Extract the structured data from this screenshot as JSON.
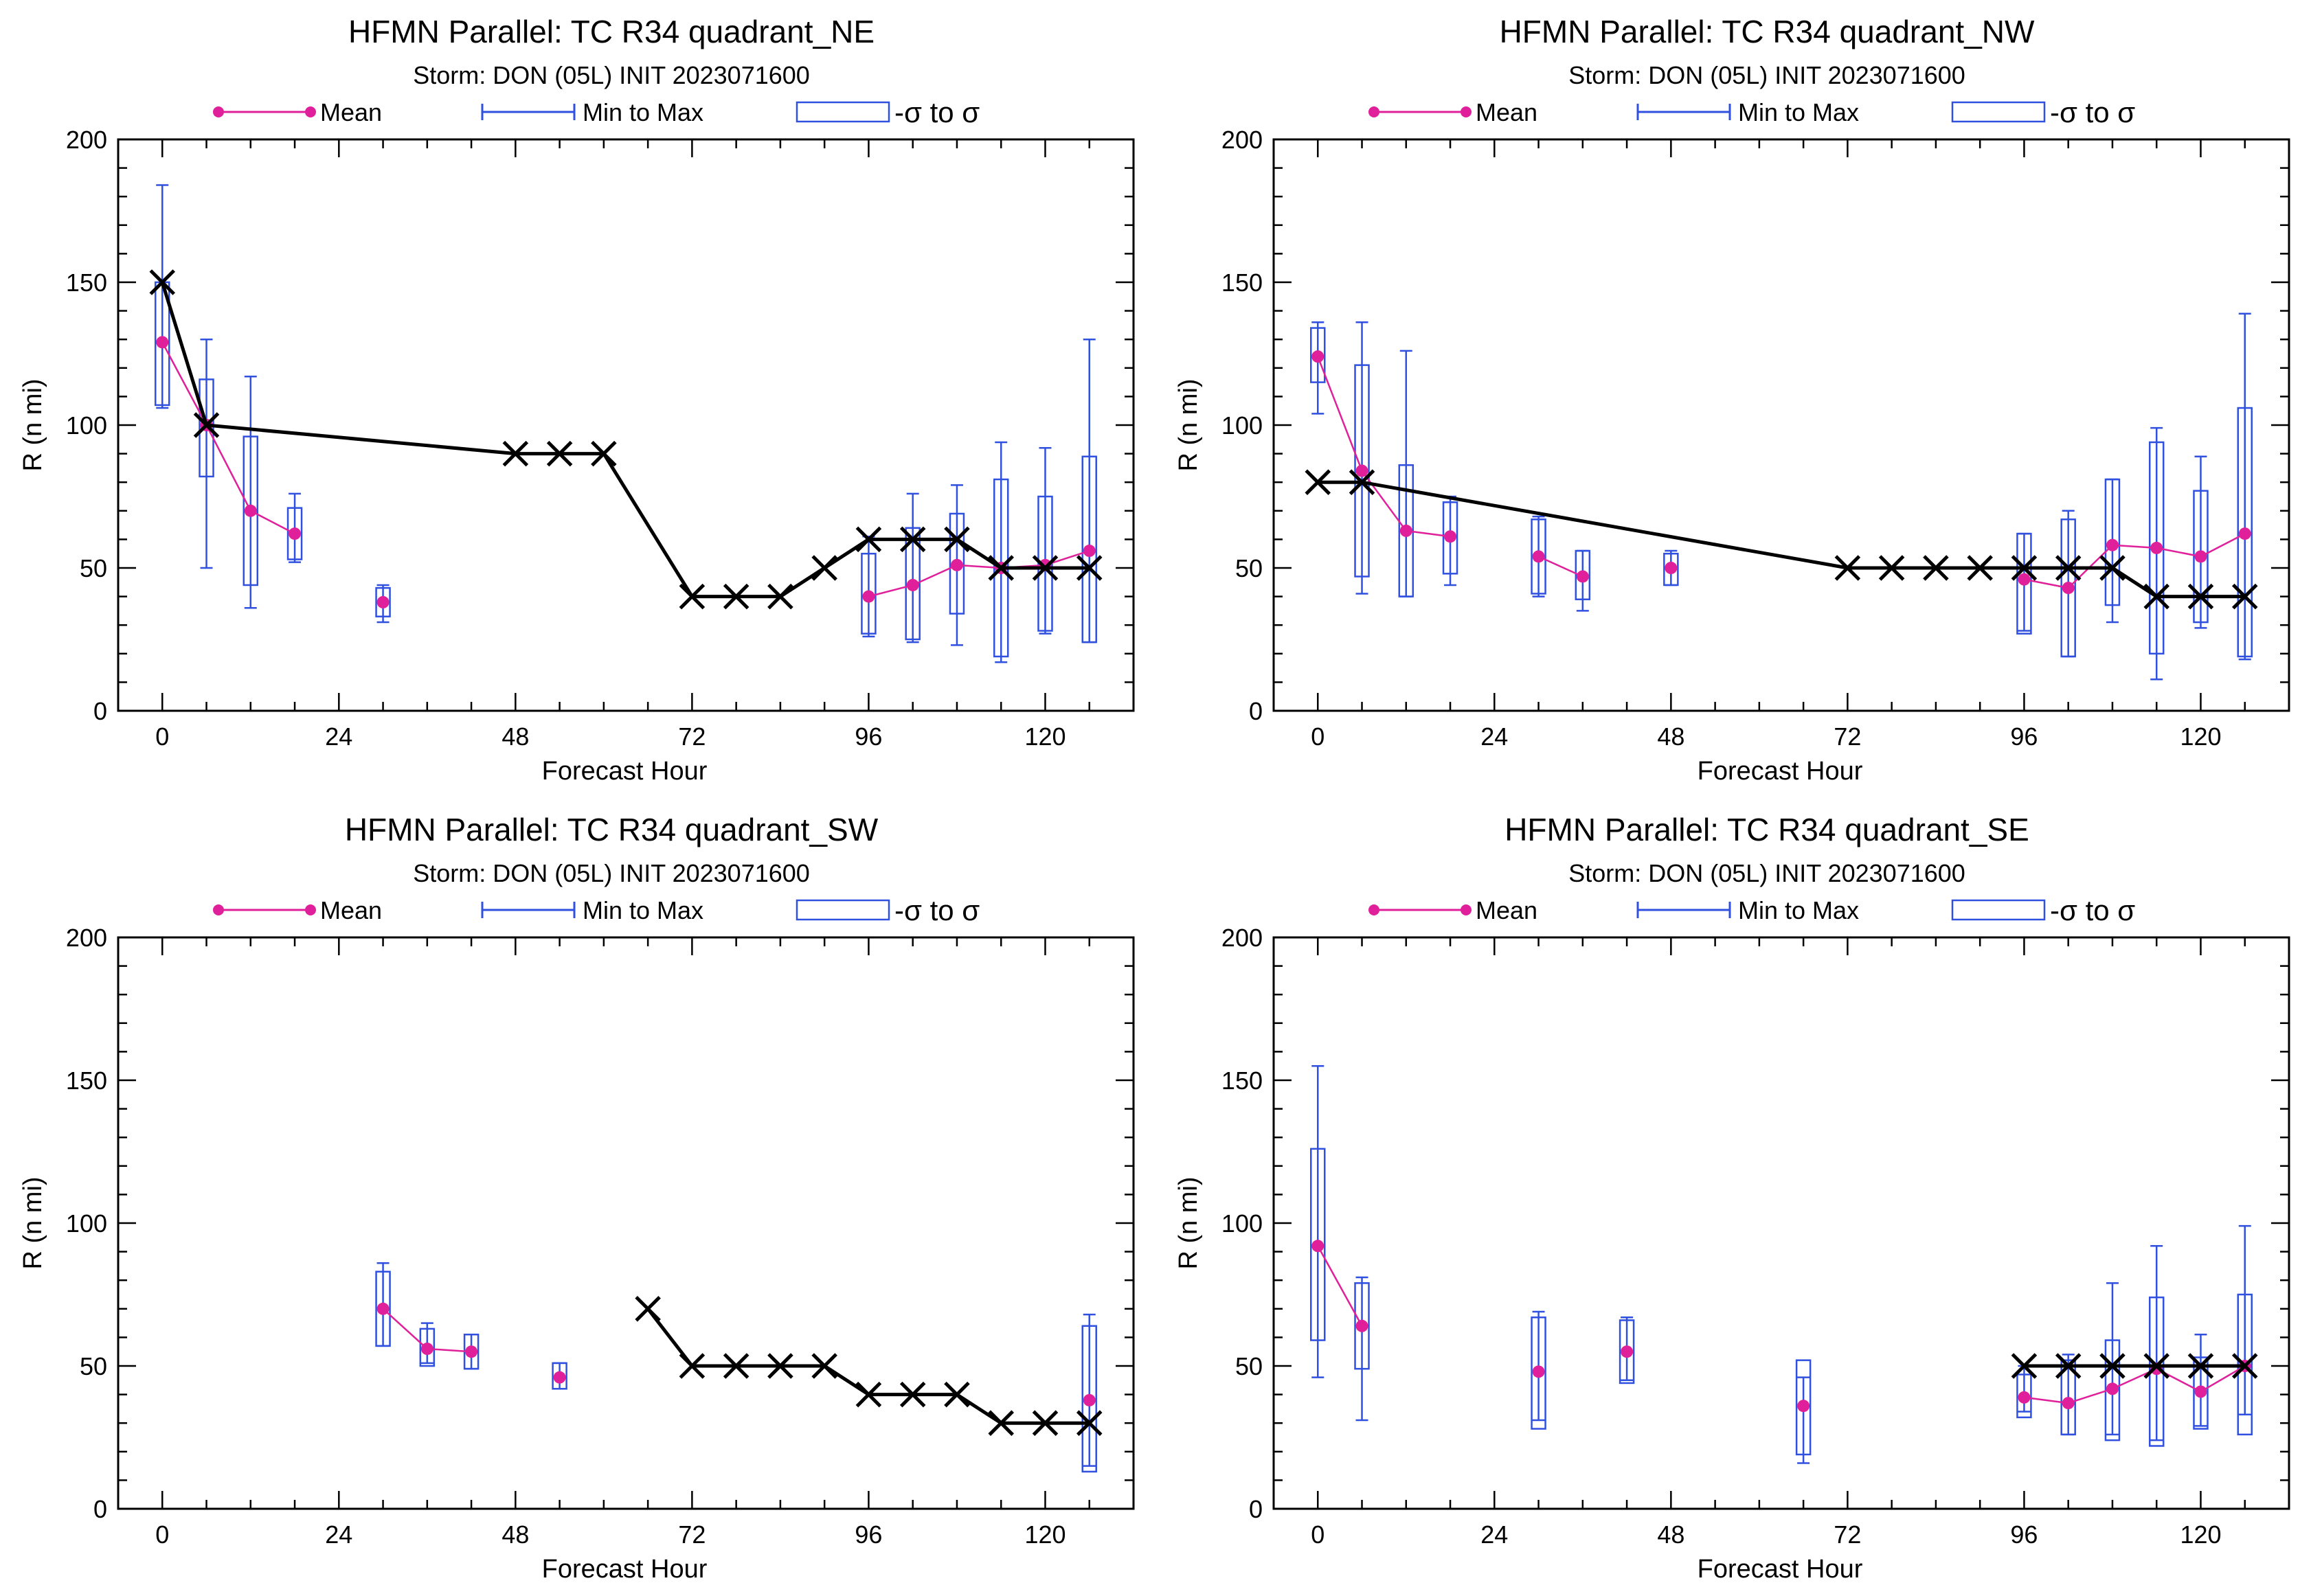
{
  "legend": {
    "mean": "Mean",
    "minmax": "Min to Max",
    "sigma": "-σ to σ"
  },
  "colors": {
    "mean": "#e0209a",
    "box": "#3050e0",
    "best_track": "#000000"
  },
  "chart_data": [
    {
      "type": "box",
      "title": "HFMN Parallel: TC  R34 quadrant_NE",
      "subtitle": "Storm: DON (05L) INIT 2023071600",
      "xlabel": "Forecast Hour",
      "ylabel": "R (n mi)",
      "xlim": [
        -6,
        132
      ],
      "ylim": [
        0,
        200
      ],
      "xticks": [
        0,
        24,
        48,
        72,
        96,
        120
      ],
      "yticks": [
        0,
        50,
        100,
        150,
        200
      ],
      "boxes": [
        {
          "x": 0,
          "min": 106,
          "max": 184,
          "lo": 107,
          "hi": 150,
          "mean": 129
        },
        {
          "x": 6,
          "min": 50,
          "max": 130,
          "lo": 82,
          "hi": 116,
          "mean": 100
        },
        {
          "x": 12,
          "min": 36,
          "max": 117,
          "lo": 44,
          "hi": 96,
          "mean": 70
        },
        {
          "x": 18,
          "min": 52,
          "max": 76,
          "lo": 53,
          "hi": 71,
          "mean": 62
        },
        {
          "x": 30,
          "min": 31,
          "max": 44,
          "lo": 33,
          "hi": 43,
          "mean": 38
        },
        {
          "x": 96,
          "min": 26,
          "max": 61,
          "lo": 27,
          "hi": 55,
          "mean": 40
        },
        {
          "x": 102,
          "min": 24,
          "max": 76,
          "lo": 25,
          "hi": 64,
          "mean": 44
        },
        {
          "x": 108,
          "min": 23,
          "max": 79,
          "lo": 34,
          "hi": 69,
          "mean": 51
        },
        {
          "x": 114,
          "min": 17,
          "max": 94,
          "lo": 19,
          "hi": 81,
          "mean": 50
        },
        {
          "x": 120,
          "min": 27,
          "max": 92,
          "lo": 28,
          "hi": 75,
          "mean": 51
        },
        {
          "x": 126,
          "min": 24,
          "max": 130,
          "lo": 24,
          "hi": 89,
          "mean": 56
        }
      ],
      "best_track": [
        [
          0,
          150
        ],
        [
          6,
          100
        ],
        [
          48,
          90
        ],
        [
          54,
          90
        ],
        [
          60,
          90
        ],
        [
          72,
          40
        ],
        [
          78,
          40
        ],
        [
          84,
          40
        ],
        [
          90,
          50
        ],
        [
          96,
          60
        ],
        [
          102,
          60
        ],
        [
          108,
          60
        ],
        [
          114,
          50
        ],
        [
          120,
          50
        ],
        [
          126,
          50
        ]
      ],
      "best_track_gaps": []
    },
    {
      "type": "box",
      "title": "HFMN Parallel: TC  R34 quadrant_NW",
      "subtitle": "Storm: DON (05L) INIT 2023071600",
      "xlabel": "Forecast Hour",
      "ylabel": "R (n mi)",
      "xlim": [
        -6,
        132
      ],
      "ylim": [
        0,
        200
      ],
      "xticks": [
        0,
        24,
        48,
        72,
        96,
        120
      ],
      "yticks": [
        0,
        50,
        100,
        150,
        200
      ],
      "boxes": [
        {
          "x": 0,
          "min": 104,
          "max": 136,
          "lo": 115,
          "hi": 134,
          "mean": 124
        },
        {
          "x": 6,
          "min": 41,
          "max": 136,
          "lo": 47,
          "hi": 121,
          "mean": 84
        },
        {
          "x": 12,
          "min": 40,
          "max": 126,
          "lo": 40,
          "hi": 86,
          "mean": 63
        },
        {
          "x": 18,
          "min": 44,
          "max": 75,
          "lo": 48,
          "hi": 73,
          "mean": 61
        },
        {
          "x": 30,
          "min": 40,
          "max": 68,
          "lo": 41,
          "hi": 67,
          "mean": 54
        },
        {
          "x": 36,
          "min": 35,
          "max": 56,
          "lo": 39,
          "hi": 56,
          "mean": 47
        },
        {
          "x": 48,
          "min": 44,
          "max": 56,
          "lo": 44,
          "hi": 55,
          "mean": 50
        },
        {
          "x": 96,
          "min": 28,
          "max": 62,
          "lo": 27,
          "hi": 62,
          "mean": 46
        },
        {
          "x": 102,
          "min": 19,
          "max": 70,
          "lo": 19,
          "hi": 67,
          "mean": 43
        },
        {
          "x": 108,
          "min": 31,
          "max": 81,
          "lo": 37,
          "hi": 81,
          "mean": 58
        },
        {
          "x": 114,
          "min": 11,
          "max": 99,
          "lo": 20,
          "hi": 94,
          "mean": 57
        },
        {
          "x": 120,
          "min": 29,
          "max": 89,
          "lo": 31,
          "hi": 77,
          "mean": 54
        },
        {
          "x": 126,
          "min": 18,
          "max": 139,
          "lo": 19,
          "hi": 106,
          "mean": 62
        }
      ],
      "best_track": [
        [
          0,
          80
        ],
        [
          6,
          80
        ],
        [
          72,
          50
        ],
        [
          78,
          50
        ],
        [
          84,
          50
        ],
        [
          90,
          50
        ],
        [
          96,
          50
        ],
        [
          102,
          50
        ],
        [
          108,
          50
        ],
        [
          114,
          40
        ],
        [
          120,
          40
        ],
        [
          126,
          40
        ]
      ],
      "best_track_gaps": []
    },
    {
      "type": "box",
      "title": "HFMN Parallel: TC  R34 quadrant_SW",
      "subtitle": "Storm: DON (05L) INIT 2023071600",
      "xlabel": "Forecast Hour",
      "ylabel": "R (n mi)",
      "xlim": [
        -6,
        132
      ],
      "ylim": [
        0,
        200
      ],
      "xticks": [
        0,
        24,
        48,
        72,
        96,
        120
      ],
      "yticks": [
        0,
        50,
        100,
        150,
        200
      ],
      "boxes": [
        {
          "x": 30,
          "min": 57,
          "max": 86,
          "lo": 57,
          "hi": 83,
          "mean": 70
        },
        {
          "x": 36,
          "min": 51,
          "max": 65,
          "lo": 50,
          "hi": 63,
          "mean": 56
        },
        {
          "x": 42,
          "min": 49,
          "max": 61,
          "lo": 49,
          "hi": 61,
          "mean": 55
        },
        {
          "x": 54,
          "min": 42,
          "max": 51,
          "lo": 42,
          "hi": 51,
          "mean": 46
        },
        {
          "x": 126,
          "min": 15,
          "max": 68,
          "lo": 13,
          "hi": 64,
          "mean": 38
        }
      ],
      "best_track": [
        [
          66,
          70
        ],
        [
          72,
          50
        ],
        [
          78,
          50
        ],
        [
          84,
          50
        ],
        [
          90,
          50
        ],
        [
          96,
          40
        ],
        [
          102,
          40
        ],
        [
          108,
          40
        ],
        [
          114,
          30
        ],
        [
          120,
          30
        ],
        [
          126,
          30
        ]
      ],
      "best_track_gaps": []
    },
    {
      "type": "box",
      "title": "HFMN Parallel: TC  R34 quadrant_SE",
      "subtitle": "Storm: DON (05L) INIT 2023071600",
      "xlabel": "Forecast Hour",
      "ylabel": "R (n mi)",
      "xlim": [
        -6,
        132
      ],
      "ylim": [
        0,
        200
      ],
      "xticks": [
        0,
        24,
        48,
        72,
        96,
        120
      ],
      "yticks": [
        0,
        50,
        100,
        150,
        200
      ],
      "boxes": [
        {
          "x": 0,
          "min": 46,
          "max": 155,
          "lo": 59,
          "hi": 126,
          "mean": 92
        },
        {
          "x": 6,
          "min": 31,
          "max": 81,
          "lo": 49,
          "hi": 79,
          "mean": 64
        },
        {
          "x": 30,
          "min": 31,
          "max": 69,
          "lo": 28,
          "hi": 67,
          "mean": 48
        },
        {
          "x": 42,
          "min": 45,
          "max": 67,
          "lo": 44,
          "hi": 66,
          "mean": 55
        },
        {
          "x": 66,
          "min": 16,
          "max": 46,
          "lo": 19,
          "hi": 52,
          "mean": 36
        },
        {
          "x": 96,
          "min": 34,
          "max": 50,
          "lo": 32,
          "hi": 47,
          "mean": 39
        },
        {
          "x": 102,
          "min": 26,
          "max": 54,
          "lo": 26,
          "hi": 52,
          "mean": 37
        },
        {
          "x": 108,
          "min": 26,
          "max": 79,
          "lo": 24,
          "hi": 59,
          "mean": 42
        },
        {
          "x": 114,
          "min": 24,
          "max": 92,
          "lo": 22,
          "hi": 74,
          "mean": 49
        },
        {
          "x": 120,
          "min": 29,
          "max": 61,
          "lo": 28,
          "hi": 53,
          "mean": 41
        },
        {
          "x": 126,
          "min": 33,
          "max": 99,
          "lo": 26,
          "hi": 75,
          "mean": 50
        }
      ],
      "best_track": [
        [
          96,
          50
        ],
        [
          102,
          50
        ],
        [
          108,
          50
        ],
        [
          114,
          50
        ],
        [
          120,
          50
        ],
        [
          126,
          50
        ]
      ],
      "best_track_gaps": []
    }
  ]
}
